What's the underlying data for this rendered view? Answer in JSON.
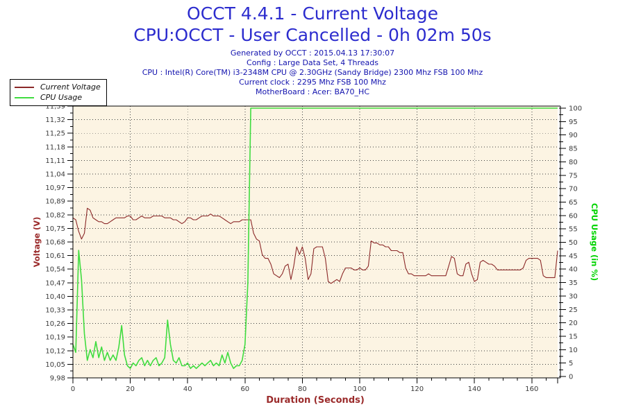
{
  "header": {
    "title_line1": "OCCT 4.4.1 - Current Voltage",
    "title_line2": "CPU:OCCT - User Cancelled - 0h 02m 50s",
    "info_lines": [
      "Generated by OCCT : 2015.04.13 17:30:07",
      "Config : Large Data Set, 4 Threads",
      "CPU : Intel(R) Core(TM) i3-2348M CPU @ 2.30GHz (Sandy Bridge) 2300 Mhz FSB 100 Mhz",
      "Current clock : 2295 Mhz FSB 100 Mhz",
      "MotherBoard : Acer: BA70_HC"
    ]
  },
  "legend": {
    "items": [
      {
        "label": "Current Voltage",
        "color": "#8B2828"
      },
      {
        "label": "CPU Usage",
        "color": "#3FDC3F"
      }
    ]
  },
  "colors": {
    "title_blue": "#2C2CCE",
    "info_blue": "#1212AE",
    "axis_red": "#9B2B2B",
    "axis_green": "#00D400",
    "tick_text": "#3A3A3A",
    "plot_bg": "#FCF4E3",
    "grid": "#3C3C3C",
    "axis_line": "#000000"
  },
  "chart_data": {
    "type": "line",
    "title": "OCCT 4.4.1 - Current Voltage",
    "xlabel": "Duration (Seconds)",
    "x_range": [
      0,
      169
    ],
    "x_major_ticks": [
      0,
      20,
      40,
      60,
      80,
      100,
      120,
      140,
      160
    ],
    "x_tick_labels": [
      "0",
      "20",
      "40",
      "60",
      "80",
      "100",
      "120",
      "140",
      "160"
    ],
    "x_minor_step": 5,
    "grid": "dotted",
    "legend_position": "top-left",
    "y_left": {
      "label": "Voltage (V)",
      "range": [
        9.98,
        11.39
      ],
      "tick_labels": [
        "9,98",
        "10,05",
        "10,12",
        "10,19",
        "10,26",
        "10,33",
        "10,40",
        "10,47",
        "10,54",
        "10,61",
        "10,68",
        "10,75",
        "10,82",
        "10,89",
        "10,97",
        "11,04",
        "11,11",
        "11,18",
        "11,25",
        "11,32",
        "11,39"
      ]
    },
    "y_right": {
      "label": "CPU Usage (in %)",
      "range": [
        0,
        100
      ],
      "tick_step": 5,
      "tick_labels": [
        "0",
        "5",
        "10",
        "15",
        "20",
        "25",
        "30",
        "35",
        "40",
        "45",
        "50",
        "55",
        "60",
        "65",
        "70",
        "75",
        "80",
        "85",
        "90",
        "95",
        "100"
      ]
    },
    "series": [
      {
        "name": "Current Voltage",
        "axis": "left",
        "color": "#8B2828",
        "width": 1.1,
        "points": [
          [
            0,
            10.81
          ],
          [
            1,
            10.8
          ],
          [
            2,
            10.74
          ],
          [
            3,
            10.7
          ],
          [
            4,
            10.73
          ],
          [
            5,
            10.86
          ],
          [
            6,
            10.85
          ],
          [
            7,
            10.81
          ],
          [
            8,
            10.8
          ],
          [
            9,
            10.79
          ],
          [
            10,
            10.79
          ],
          [
            11,
            10.78
          ],
          [
            12,
            10.78
          ],
          [
            13,
            10.79
          ],
          [
            14,
            10.8
          ],
          [
            15,
            10.81
          ],
          [
            16,
            10.81
          ],
          [
            17,
            10.81
          ],
          [
            18,
            10.81
          ],
          [
            19,
            10.82
          ],
          [
            20,
            10.82
          ],
          [
            21,
            10.8
          ],
          [
            22,
            10.8
          ],
          [
            23,
            10.81
          ],
          [
            24,
            10.82
          ],
          [
            25,
            10.81
          ],
          [
            26,
            10.81
          ],
          [
            27,
            10.81
          ],
          [
            28,
            10.82
          ],
          [
            29,
            10.82
          ],
          [
            30,
            10.82
          ],
          [
            31,
            10.82
          ],
          [
            32,
            10.81
          ],
          [
            33,
            10.81
          ],
          [
            34,
            10.81
          ],
          [
            35,
            10.8
          ],
          [
            36,
            10.8
          ],
          [
            37,
            10.79
          ],
          [
            38,
            10.78
          ],
          [
            39,
            10.79
          ],
          [
            40,
            10.81
          ],
          [
            41,
            10.81
          ],
          [
            42,
            10.8
          ],
          [
            43,
            10.8
          ],
          [
            44,
            10.81
          ],
          [
            45,
            10.82
          ],
          [
            46,
            10.82
          ],
          [
            47,
            10.82
          ],
          [
            48,
            10.83
          ],
          [
            49,
            10.82
          ],
          [
            50,
            10.82
          ],
          [
            51,
            10.82
          ],
          [
            52,
            10.81
          ],
          [
            53,
            10.8
          ],
          [
            54,
            10.79
          ],
          [
            55,
            10.78
          ],
          [
            56,
            10.79
          ],
          [
            57,
            10.79
          ],
          [
            58,
            10.79
          ],
          [
            59,
            10.8
          ],
          [
            60,
            10.8
          ],
          [
            61,
            10.8
          ],
          [
            62,
            10.8
          ],
          [
            63,
            10.73
          ],
          [
            64,
            10.7
          ],
          [
            65,
            10.69
          ],
          [
            66,
            10.62
          ],
          [
            67,
            10.6
          ],
          [
            68,
            10.6
          ],
          [
            69,
            10.57
          ],
          [
            70,
            10.52
          ],
          [
            71,
            10.51
          ],
          [
            72,
            10.5
          ],
          [
            73,
            10.52
          ],
          [
            74,
            10.56
          ],
          [
            75,
            10.57
          ],
          [
            76,
            10.49
          ],
          [
            77,
            10.56
          ],
          [
            78,
            10.66
          ],
          [
            79,
            10.62
          ],
          [
            80,
            10.66
          ],
          [
            81,
            10.6
          ],
          [
            82,
            10.49
          ],
          [
            83,
            10.52
          ],
          [
            84,
            10.65
          ],
          [
            85,
            10.66
          ],
          [
            86,
            10.66
          ],
          [
            87,
            10.66
          ],
          [
            88,
            10.6
          ],
          [
            89,
            10.48
          ],
          [
            90,
            10.47
          ],
          [
            91,
            10.48
          ],
          [
            92,
            10.49
          ],
          [
            93,
            10.48
          ],
          [
            94,
            10.52
          ],
          [
            95,
            10.55
          ],
          [
            96,
            10.55
          ],
          [
            97,
            10.55
          ],
          [
            98,
            10.54
          ],
          [
            99,
            10.54
          ],
          [
            100,
            10.55
          ],
          [
            101,
            10.54
          ],
          [
            102,
            10.54
          ],
          [
            103,
            10.56
          ],
          [
            104,
            10.69
          ],
          [
            105,
            10.68
          ],
          [
            106,
            10.68
          ],
          [
            107,
            10.67
          ],
          [
            108,
            10.67
          ],
          [
            109,
            10.66
          ],
          [
            110,
            10.66
          ],
          [
            111,
            10.64
          ],
          [
            112,
            10.64
          ],
          [
            113,
            10.64
          ],
          [
            114,
            10.63
          ],
          [
            115,
            10.63
          ],
          [
            116,
            10.55
          ],
          [
            117,
            10.52
          ],
          [
            118,
            10.52
          ],
          [
            119,
            10.51
          ],
          [
            120,
            10.51
          ],
          [
            121,
            10.51
          ],
          [
            122,
            10.51
          ],
          [
            123,
            10.51
          ],
          [
            124,
            10.52
          ],
          [
            125,
            10.51
          ],
          [
            126,
            10.51
          ],
          [
            127,
            10.51
          ],
          [
            128,
            10.51
          ],
          [
            129,
            10.51
          ],
          [
            130,
            10.51
          ],
          [
            131,
            10.56
          ],
          [
            132,
            10.61
          ],
          [
            133,
            10.6
          ],
          [
            134,
            10.52
          ],
          [
            135,
            10.51
          ],
          [
            136,
            10.51
          ],
          [
            137,
            10.57
          ],
          [
            138,
            10.58
          ],
          [
            139,
            10.52
          ],
          [
            140,
            10.48
          ],
          [
            141,
            10.49
          ],
          [
            142,
            10.58
          ],
          [
            143,
            10.59
          ],
          [
            144,
            10.58
          ],
          [
            145,
            10.57
          ],
          [
            146,
            10.57
          ],
          [
            147,
            10.56
          ],
          [
            148,
            10.54
          ],
          [
            149,
            10.54
          ],
          [
            150,
            10.54
          ],
          [
            151,
            10.54
          ],
          [
            152,
            10.54
          ],
          [
            153,
            10.54
          ],
          [
            154,
            10.54
          ],
          [
            155,
            10.54
          ],
          [
            156,
            10.54
          ],
          [
            157,
            10.55
          ],
          [
            158,
            10.59
          ],
          [
            159,
            10.6
          ],
          [
            160,
            10.6
          ],
          [
            161,
            10.6
          ],
          [
            162,
            10.6
          ],
          [
            163,
            10.59
          ],
          [
            164,
            10.51
          ],
          [
            165,
            10.5
          ],
          [
            166,
            10.5
          ],
          [
            167,
            10.5
          ],
          [
            168,
            10.5
          ],
          [
            169,
            10.64
          ]
        ]
      },
      {
        "name": "CPU Usage",
        "axis": "right",
        "color": "#3FDC3F",
        "width": 1.6,
        "points": [
          [
            0,
            12
          ],
          [
            1,
            9
          ],
          [
            2,
            47
          ],
          [
            3,
            36
          ],
          [
            4,
            16
          ],
          [
            5,
            6
          ],
          [
            6,
            10
          ],
          [
            7,
            7
          ],
          [
            8,
            13
          ],
          [
            9,
            7
          ],
          [
            10,
            11
          ],
          [
            11,
            6
          ],
          [
            12,
            9
          ],
          [
            13,
            6
          ],
          [
            14,
            8
          ],
          [
            15,
            6
          ],
          [
            16,
            11
          ],
          [
            17,
            19
          ],
          [
            18,
            8
          ],
          [
            19,
            4
          ],
          [
            20,
            3
          ],
          [
            21,
            5
          ],
          [
            22,
            4
          ],
          [
            23,
            6
          ],
          [
            24,
            7
          ],
          [
            25,
            4
          ],
          [
            26,
            6
          ],
          [
            27,
            4
          ],
          [
            28,
            6
          ],
          [
            29,
            7
          ],
          [
            30,
            4
          ],
          [
            31,
            5
          ],
          [
            32,
            7
          ],
          [
            33,
            21
          ],
          [
            34,
            12
          ],
          [
            35,
            6
          ],
          [
            36,
            5
          ],
          [
            37,
            7
          ],
          [
            38,
            4
          ],
          [
            39,
            4
          ],
          [
            40,
            5
          ],
          [
            41,
            3
          ],
          [
            42,
            4
          ],
          [
            43,
            3
          ],
          [
            44,
            4
          ],
          [
            45,
            5
          ],
          [
            46,
            4
          ],
          [
            47,
            5
          ],
          [
            48,
            6
          ],
          [
            49,
            4
          ],
          [
            50,
            5
          ],
          [
            51,
            4
          ],
          [
            52,
            8
          ],
          [
            53,
            5
          ],
          [
            54,
            9
          ],
          [
            55,
            5
          ],
          [
            56,
            3
          ],
          [
            57,
            4
          ],
          [
            58,
            4
          ],
          [
            59,
            6
          ],
          [
            60,
            12
          ],
          [
            61,
            35
          ],
          [
            62,
            100
          ],
          [
            70,
            100
          ],
          [
            80,
            100
          ],
          [
            90,
            100
          ],
          [
            100,
            100
          ],
          [
            110,
            100
          ],
          [
            120,
            100
          ],
          [
            130,
            100
          ],
          [
            140,
            100
          ],
          [
            150,
            100
          ],
          [
            160,
            100
          ],
          [
            169,
            100
          ]
        ]
      }
    ]
  }
}
